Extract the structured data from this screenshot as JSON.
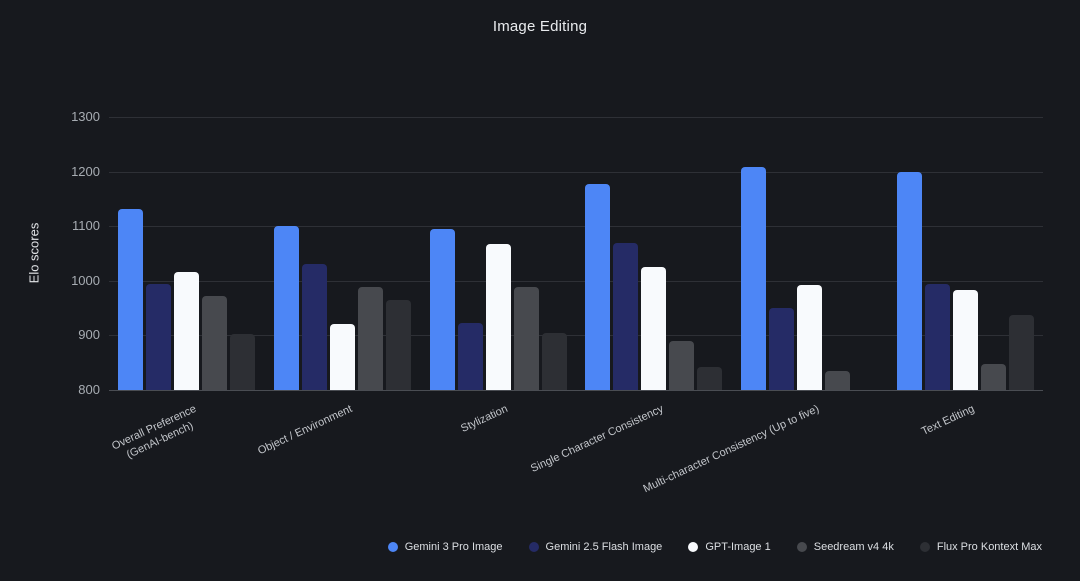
{
  "theme": {
    "background": "#17191e",
    "gridline_color": "#2e3036",
    "axis_line_color": "#4a4d53",
    "tick_text_color": "#a7acb2",
    "title_color": "#e9ebee"
  },
  "chart_data": {
    "type": "bar",
    "title": "Image Editing",
    "ylabel": "Elo scores",
    "ylim": [
      800,
      1300
    ],
    "yticks": [
      800,
      900,
      1000,
      1100,
      1200,
      1300
    ],
    "grid": true,
    "legend_position": "bottom-right",
    "categories": [
      "Overall Preference\n(GenAI-bench)",
      "Object / Environment",
      "Stylization",
      "Single Character Consistency",
      "Multi-character Consistency (Up to five)",
      "Text Editing"
    ],
    "series": [
      {
        "name": "Gemini 3 Pro Image",
        "color": "#4d86f6",
        "values": [
          1131,
          1100,
          1095,
          1178,
          1208,
          1200
        ]
      },
      {
        "name": "Gemini 2.5 Flash Image",
        "color": "#252b66",
        "values": [
          995,
          1031,
          922,
          1069,
          950,
          995
        ]
      },
      {
        "name": "GPT-Image 1",
        "color": "#f8fafd",
        "values": [
          1017,
          920,
          1068,
          1026,
          993,
          984
        ]
      },
      {
        "name": "Seedream v4 4k",
        "color": "#47494e",
        "values": [
          972,
          988,
          989,
          890,
          835,
          848
        ]
      },
      {
        "name": "Flux Pro Kontext Max",
        "color": "#2d2f34",
        "values": [
          902,
          965,
          904,
          843,
          null,
          937
        ]
      }
    ]
  }
}
